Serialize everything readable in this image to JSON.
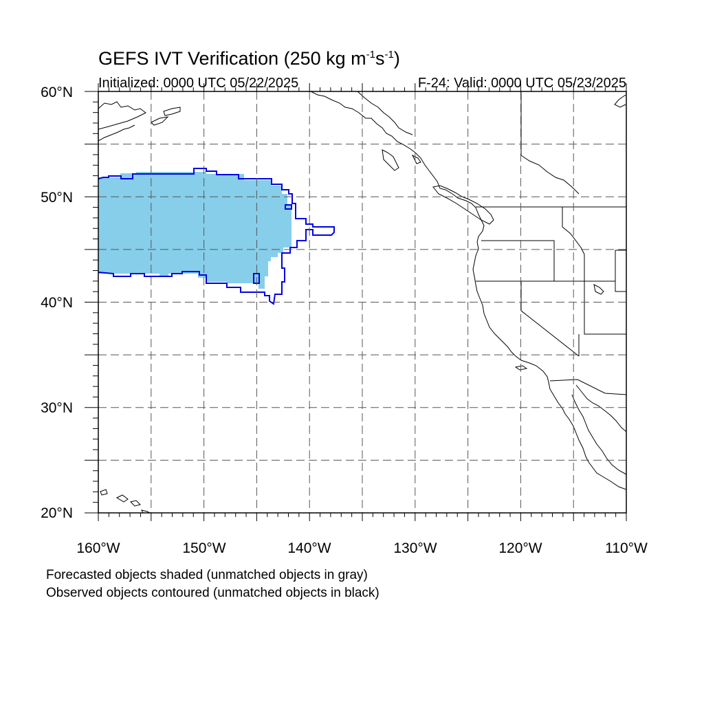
{
  "header": {
    "title_prefix": "GEFS IVT Verification (250 kg m",
    "title_sup1": "-1",
    "title_mid": "s",
    "title_sup2": "-1",
    "title_suffix": ")",
    "initialized": "Initialized: 0000 UTC 05/22/2025",
    "valid": "F-24: Valid: 0000 UTC 05/23/2025"
  },
  "axes": {
    "lat_labels": [
      "60°N",
      "50°N",
      "40°N",
      "30°N",
      "20°N"
    ],
    "lon_labels": [
      "160°W",
      "150°W",
      "140°W",
      "130°W",
      "120°W",
      "110°W"
    ],
    "lat_range": [
      20,
      60
    ],
    "lon_range": [
      -160,
      -110
    ]
  },
  "legend": {
    "line1": "Forecasted objects shaded (unmatched objects in gray)",
    "line2": "Observed objects contoured (unmatched objects in black)"
  },
  "colors": {
    "forecast_fill": "#87ceea",
    "observed_contour": "#0000e0",
    "coastline": "#000000",
    "grid": "#555555"
  }
}
